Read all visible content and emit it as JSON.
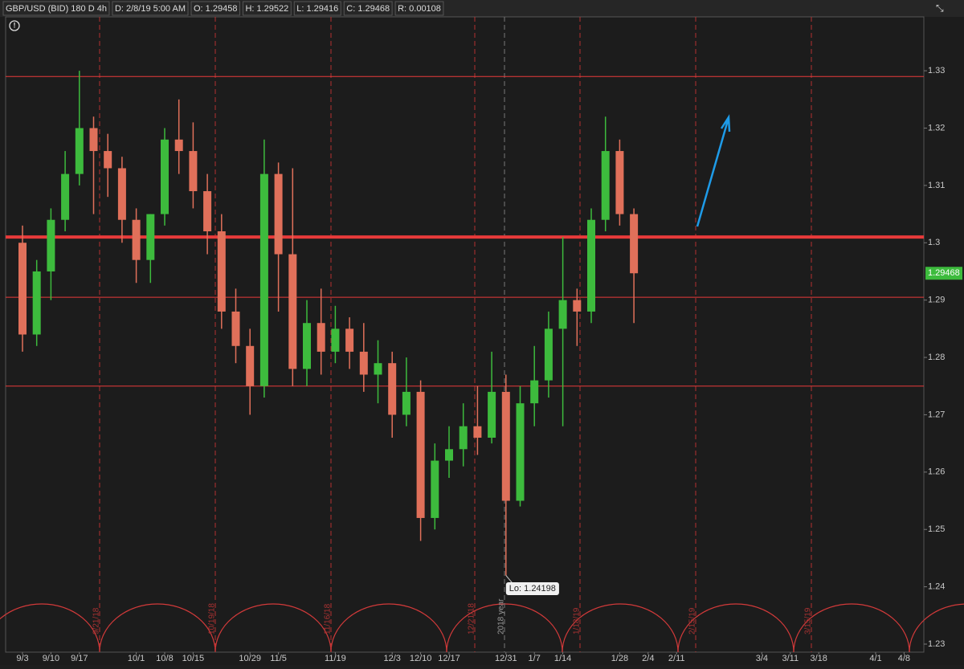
{
  "header": {
    "symbol": "GBP/USD (BID) 180 D 4h",
    "date": "D: 2/8/19 5:00 AM",
    "open": "O: 1.29458",
    "high": "H: 1.29522",
    "low": "L: 1.29416",
    "close": "C: 1.29468",
    "range": "R: 0.00108"
  },
  "chart_data": {
    "type": "candlestick",
    "categories": [
      "9/3",
      null,
      "9/10",
      null,
      "9/17",
      null,
      null,
      null,
      "10/1",
      null,
      "10/8",
      null,
      "10/15",
      null,
      null,
      null,
      "10/29",
      null,
      "11/5",
      null,
      null,
      null,
      "11/19",
      null,
      null,
      null,
      "12/3",
      null,
      "12/10",
      null,
      "12/17",
      null,
      null,
      null,
      "12/31",
      null,
      "1/7",
      null,
      "1/14",
      null,
      null,
      null,
      "1/28",
      null,
      "2/4",
      null,
      "2/11",
      null,
      null,
      null,
      null,
      null,
      "3/4",
      null,
      "3/11",
      null,
      "3/18",
      null,
      null,
      null,
      "4/1",
      null,
      "4/8",
      null
    ],
    "open": [
      1.3,
      1.284,
      1.295,
      1.304,
      1.312,
      1.32,
      1.316,
      1.313,
      1.304,
      1.297,
      1.305,
      1.318,
      1.316,
      1.309,
      1.302,
      1.288,
      1.282,
      1.275,
      1.312,
      1.298,
      1.278,
      1.286,
      1.281,
      1.285,
      1.281,
      1.277,
      1.279,
      1.27,
      1.274,
      1.252,
      1.262,
      1.264,
      1.268,
      1.266,
      1.274,
      1.255,
      1.272,
      1.276,
      1.285,
      1.29,
      1.288,
      1.304,
      1.316,
      1.305,
      null,
      null,
      null,
      null,
      null,
      null,
      null,
      null,
      null,
      null,
      null,
      null,
      null,
      null,
      null,
      null,
      null,
      null,
      null,
      null
    ],
    "high": [
      1.303,
      1.297,
      1.306,
      1.316,
      1.33,
      1.322,
      1.319,
      1.315,
      1.306,
      1.305,
      1.32,
      1.325,
      1.321,
      1.312,
      1.305,
      1.292,
      1.285,
      1.318,
      1.314,
      1.313,
      1.29,
      1.292,
      1.289,
      1.287,
      1.286,
      1.283,
      1.281,
      1.28,
      1.276,
      1.265,
      1.268,
      1.272,
      1.275,
      1.281,
      1.277,
      1.275,
      1.282,
      1.288,
      1.301,
      1.292,
      1.306,
      1.322,
      1.318,
      1.306,
      null,
      null,
      null,
      null,
      null,
      null,
      null,
      null,
      null,
      null,
      null,
      null,
      null,
      null,
      null,
      null,
      null,
      null,
      null,
      null
    ],
    "low": [
      1.281,
      1.282,
      1.29,
      1.302,
      1.31,
      1.305,
      1.308,
      1.3,
      1.293,
      1.293,
      1.303,
      1.312,
      1.306,
      1.298,
      1.285,
      1.279,
      1.27,
      1.273,
      1.288,
      1.275,
      1.275,
      1.277,
      1.279,
      1.278,
      1.274,
      1.272,
      1.266,
      1.268,
      1.248,
      1.25,
      1.259,
      1.261,
      1.263,
      1.265,
      1.24198,
      1.254,
      1.268,
      1.273,
      1.268,
      1.282,
      1.286,
      1.302,
      1.303,
      1.286,
      null,
      null,
      null,
      null,
      null,
      null,
      null,
      null,
      null,
      null,
      null,
      null,
      null,
      null,
      null,
      null,
      null,
      null,
      null,
      null
    ],
    "close": [
      1.284,
      1.295,
      1.304,
      1.312,
      1.32,
      1.316,
      1.313,
      1.304,
      1.297,
      1.305,
      1.318,
      1.316,
      1.309,
      1.302,
      1.288,
      1.282,
      1.275,
      1.312,
      1.298,
      1.278,
      1.286,
      1.281,
      1.285,
      1.281,
      1.277,
      1.279,
      1.27,
      1.274,
      1.252,
      1.262,
      1.264,
      1.268,
      1.266,
      1.274,
      1.255,
      1.272,
      1.276,
      1.285,
      1.29,
      1.288,
      1.304,
      1.316,
      1.305,
      1.29468,
      null,
      null,
      null,
      null,
      null,
      null,
      null,
      null,
      null,
      null,
      null,
      null,
      null,
      null,
      null,
      null,
      null,
      null,
      null,
      null
    ],
    "up_color": "#3dbb3d",
    "down_color": "#e0705a",
    "ylim": [
      1.2286,
      1.3394
    ],
    "yticks": [
      1.23,
      1.24,
      1.25,
      1.26,
      1.27,
      1.28,
      1.29,
      1.3,
      1.31,
      1.32,
      1.33
    ],
    "levels": [
      1.329,
      1.301,
      1.2905,
      1.275
    ],
    "level_color": "#e83a3a",
    "cycle_labels": [
      "9/21/18",
      "10/19/18",
      "11/16/18",
      "12/21/18",
      "1/18/19",
      "2/15/19",
      "3/15/19"
    ],
    "year_label": "2018 year",
    "low_annotation": "Lo: 1.24198",
    "price_badge": "1.29468"
  }
}
